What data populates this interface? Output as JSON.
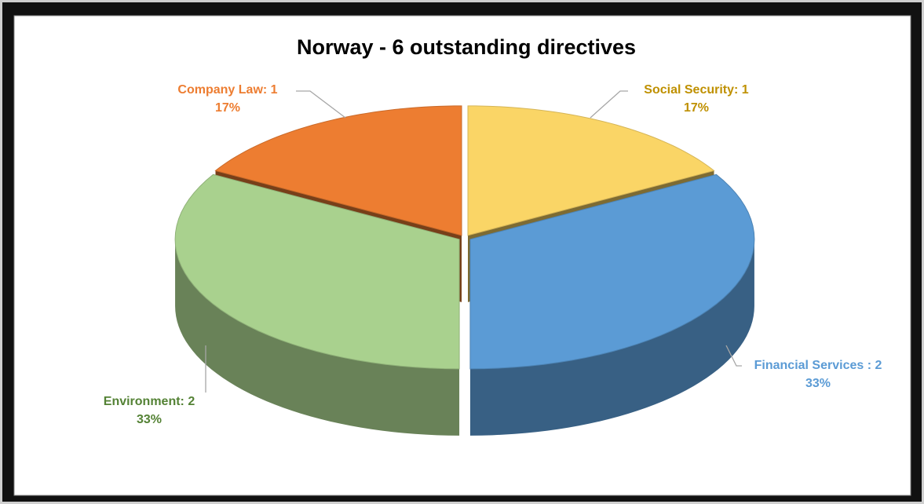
{
  "chart_data": {
    "type": "pie3d",
    "title": "Norway -  6 outstanding directives",
    "values": [
      1,
      2,
      2,
      1
    ],
    "value_labels": [
      "Social Security: 1",
      "Financial Services : 2",
      "Environment: 2",
      "Company Law: 1"
    ],
    "percent_labels": [
      "17%",
      "33%",
      "33%",
      "17%"
    ],
    "colors": [
      "#fad566",
      "#5b9bd5",
      "#a9d18e",
      "#ed7d31"
    ],
    "label_colors": [
      "#bf9000",
      "#5b9bd5",
      "#548235",
      "#ed7d31"
    ]
  }
}
